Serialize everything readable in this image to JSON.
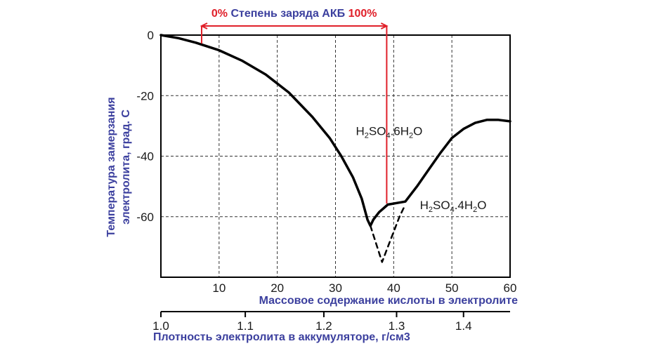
{
  "chart_data": {
    "type": "line",
    "title": "",
    "xlabel": "Массовое содержание кислоты в электролите",
    "ylabel_line1": "Температура замерзания",
    "ylabel_line2": "электролита,  град. С",
    "xlim": [
      0,
      60
    ],
    "ylim": [
      -80,
      0
    ],
    "x_ticks": [
      "10",
      "20",
      "30",
      "40",
      "50",
      "60"
    ],
    "y_ticks": [
      "0",
      "-20",
      "-40",
      "-60"
    ],
    "grid": true,
    "secondary_axis": {
      "label": "Плотность электролита в аккумуляторе,  г/см3",
      "ticks": [
        "1.0",
        "1.1",
        "1.2",
        "1.3",
        "1.4"
      ],
      "tick_positions_x": [
        0,
        14.5,
        28,
        40.5,
        52
      ]
    },
    "charge_bracket": {
      "label_start": "0%",
      "label_middle": " Степень заряда АКБ ",
      "label_end": "100%",
      "x_start": 7,
      "x_end": 38.8,
      "color": "#e0202a"
    },
    "series": [
      {
        "style": "solid",
        "x": [
          0,
          3,
          6,
          10,
          14,
          18,
          22,
          26,
          29,
          31,
          33,
          34.5,
          35.5,
          36,
          36.5,
          37.5,
          39,
          40.5,
          42,
          44,
          46,
          48,
          50,
          52,
          54,
          56,
          58,
          60
        ],
        "y": [
          0,
          -1,
          -2.5,
          -5,
          -8.5,
          -13,
          -19,
          -27,
          -34,
          -40,
          -47,
          -54,
          -61,
          -63,
          -61,
          -58.5,
          -56,
          -55.5,
          -55,
          -50,
          -44.5,
          -39,
          -34,
          -31,
          -29,
          -28,
          -28,
          -28.5
        ]
      },
      {
        "style": "dashed",
        "x": [
          36,
          37,
          38,
          39,
          40,
          41,
          42
        ],
        "y": [
          -63,
          -69,
          -75,
          -70,
          -65,
          -60,
          -56
        ]
      }
    ],
    "annotations": [
      {
        "main": "H",
        "sub": "2",
        "main2": "SO",
        "sub2": "4",
        "rest": ".6H",
        "sub3": "2",
        "tail": "O",
        "x": 33.5,
        "y": -33
      },
      {
        "main": "H",
        "sub": "2",
        "main2": "SO",
        "sub2": "4",
        "rest": ".4H",
        "sub3": "2",
        "tail": "O",
        "x": 44.5,
        "y": -57.5
      }
    ],
    "line_color": "#000000"
  }
}
